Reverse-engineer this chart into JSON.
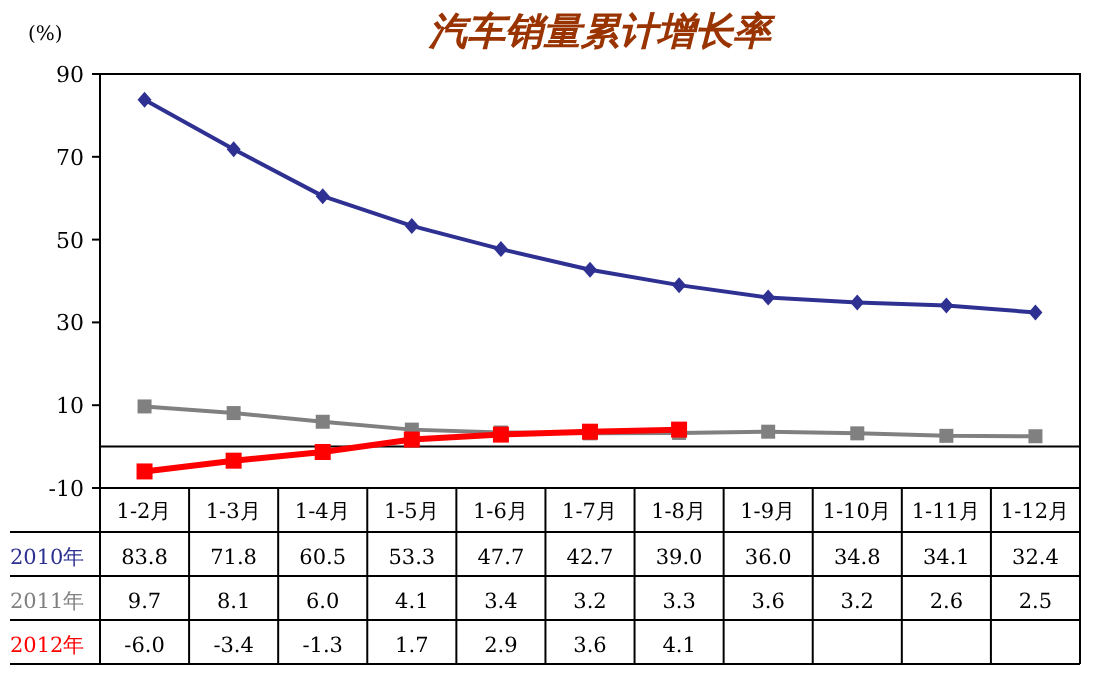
{
  "chart_data": {
    "type": "line",
    "title": "汽车销量累计增长率",
    "ylabel": "(%)",
    "ylim": [
      -10,
      90
    ],
    "yticks": [
      -10,
      10,
      30,
      50,
      70,
      90
    ],
    "categories": [
      "1-2月",
      "1-3月",
      "1-4月",
      "1-5月",
      "1-6月",
      "1-7月",
      "1-8月",
      "1-9月",
      "1-10月",
      "1-11月",
      "1-12月"
    ],
    "ref_lines": [
      {
        "axis": "y",
        "value": 0,
        "color": "#000000"
      }
    ],
    "series": [
      {
        "name": "2010年",
        "color": "#2e3192",
        "marker": "diamond",
        "values": [
          83.8,
          71.8,
          60.5,
          53.3,
          47.7,
          42.7,
          39.0,
          36.0,
          34.8,
          34.1,
          32.4
        ],
        "value_labels": [
          "83.8",
          "71.8",
          "60.5",
          "53.3",
          "47.7",
          "42.7",
          "39.0",
          "36.0",
          "34.8",
          "34.1",
          "32.4"
        ]
      },
      {
        "name": "2011年",
        "color": "#808080",
        "marker": "square",
        "values": [
          9.7,
          8.1,
          6.0,
          4.1,
          3.4,
          3.2,
          3.3,
          3.6,
          3.2,
          2.6,
          2.5
        ],
        "value_labels": [
          "9.7",
          "8.1",
          "6.0",
          "4.1",
          "3.4",
          "3.2",
          "3.3",
          "3.6",
          "3.2",
          "2.6",
          "2.5"
        ]
      },
      {
        "name": "2012年",
        "color": "#ff0000",
        "marker": "square",
        "values": [
          -6.0,
          -3.4,
          -1.3,
          1.7,
          2.9,
          3.6,
          4.1,
          null,
          null,
          null,
          null
        ],
        "value_labels": [
          "-6.0",
          "-3.4",
          "-1.3",
          "1.7",
          "2.9",
          "3.6",
          "4.1",
          null,
          null,
          null,
          null
        ]
      }
    ]
  }
}
